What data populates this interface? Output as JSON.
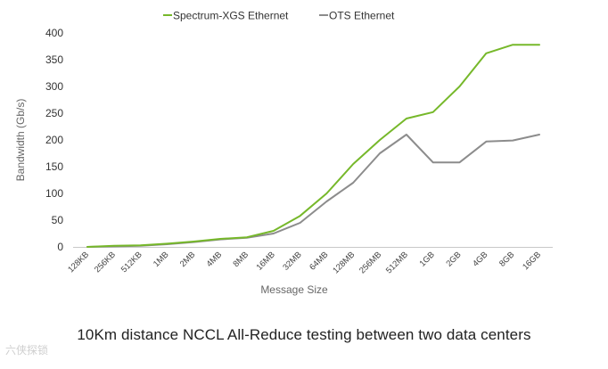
{
  "chart_data": {
    "type": "line",
    "title": "10Km distance NCCL All-Reduce testing between two data centers",
    "xlabel": "Message Size",
    "ylabel": "Bandwidth (Gb/s)",
    "categories": [
      "128KB",
      "256KB",
      "512KB",
      "1MB",
      "2MB",
      "4MB",
      "8MB",
      "16MB",
      "32MB",
      "64MB",
      "128MB",
      "256MB",
      "512MB",
      "1GB",
      "2GB",
      "4GB",
      "8GB",
      "16GB"
    ],
    "ylim": [
      0,
      400
    ],
    "yticks": [
      0,
      50,
      100,
      150,
      200,
      250,
      300,
      350,
      400
    ],
    "grid": false,
    "legend_position": "top",
    "series": [
      {
        "name": "Spectrum-XGS Ethernet",
        "color": "#76b82a",
        "values": [
          0,
          2,
          3,
          6,
          10,
          15,
          18,
          30,
          58,
          100,
          155,
          200,
          240,
          252,
          300,
          362,
          378,
          378
        ]
      },
      {
        "name": "OTS Ethernet",
        "color": "#8c8c8c",
        "values": [
          0,
          1,
          2,
          5,
          9,
          14,
          17,
          25,
          45,
          85,
          120,
          175,
          210,
          158,
          158,
          197,
          199,
          210
        ]
      }
    ]
  },
  "watermark": "六侠探锁"
}
